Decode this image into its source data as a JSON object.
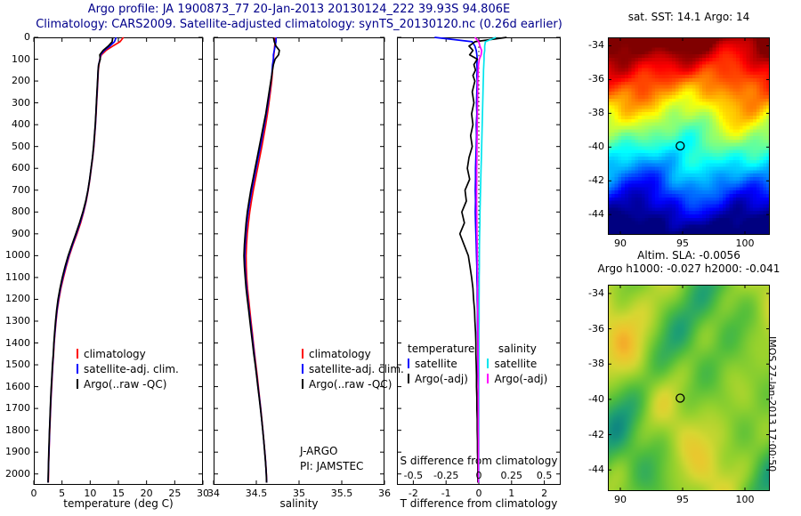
{
  "header": {
    "line1": "Argo profile: JA 1900873_77 20-Jan-2013 20130124_222 39.93S 94.806E",
    "line2": "Climatology: CARS2009. Satellite-adjusted climatology: synTS_20130120.nc (0.26d earlier)"
  },
  "notes": {
    "line1": "J-ARGO",
    "line2": "PI: JAMSTEC"
  },
  "watermark": "IMOS 27-Jan-2013 17:00:50",
  "colors": {
    "title": "#00008b",
    "climatology_red": "#ff0000",
    "satellite_blue": "#0000ff",
    "argo_black": "#000000",
    "salinity_satellite_cyan": "#00e5ee",
    "salinity_argo_magenta": "#ff00ff"
  },
  "profile_depths_m": [
    0,
    20,
    40,
    60,
    80,
    100,
    125,
    150,
    175,
    200,
    250,
    300,
    350,
    400,
    450,
    500,
    550,
    600,
    650,
    700,
    750,
    800,
    850,
    900,
    950,
    1000,
    1050,
    1100,
    1150,
    1200,
    1250,
    1300,
    1350,
    1400,
    1450,
    1500,
    1550,
    1600,
    1650,
    1700,
    1750,
    1800,
    1850,
    1900,
    1950,
    2000,
    2040
  ],
  "chart_data": [
    {
      "id": "temp",
      "type": "line",
      "xlabel": "temperature (deg C)",
      "xlim": [
        0,
        30
      ],
      "xticks": [
        0,
        5,
        10,
        15,
        20,
        25,
        30
      ],
      "xtick_labels": [
        "0",
        "5",
        "10",
        "15",
        "20",
        "25",
        "30"
      ],
      "ylim": [
        0,
        2050
      ],
      "yticks": [
        0,
        100,
        200,
        300,
        400,
        500,
        600,
        700,
        800,
        900,
        1000,
        1100,
        1200,
        1300,
        1400,
        1500,
        1600,
        1700,
        1800,
        1900,
        2000
      ],
      "show_ylabels": true,
      "series": [
        {
          "name": "climatology",
          "color": "#ff0000",
          "values": [
            15.9,
            15.3,
            14.0,
            12.8,
            12.0,
            11.7,
            11.55,
            11.45,
            11.4,
            11.35,
            11.25,
            11.15,
            11.05,
            10.95,
            10.8,
            10.65,
            10.45,
            10.2,
            9.95,
            9.65,
            9.3,
            8.85,
            8.3,
            7.65,
            6.95,
            6.3,
            5.75,
            5.25,
            4.8,
            4.45,
            4.15,
            3.95,
            3.78,
            3.62,
            3.5,
            3.38,
            3.27,
            3.17,
            3.07,
            2.98,
            2.9,
            2.83,
            2.76,
            2.7,
            2.64,
            2.6,
            2.57
          ]
        },
        {
          "name": "satellite-adj. clim.",
          "color": "#0000ff",
          "values": [
            14.6,
            14.3,
            13.5,
            12.5,
            11.85,
            11.75,
            11.5,
            11.42,
            11.37,
            11.32,
            11.22,
            11.12,
            11.02,
            10.92,
            10.77,
            10.62,
            10.42,
            10.17,
            9.92,
            9.62,
            9.25,
            8.78,
            8.2,
            7.55,
            6.85,
            6.2,
            5.65,
            5.15,
            4.72,
            4.37,
            4.1,
            3.9,
            3.74,
            3.58,
            3.47,
            3.34,
            3.23,
            3.13,
            3.03,
            2.95,
            2.87,
            2.8,
            2.74,
            2.68,
            2.62,
            2.58,
            2.55
          ]
        },
        {
          "name": "Argo(..raw -QC)",
          "color": "#000000",
          "values": [
            14.0,
            13.9,
            13.2,
            12.3,
            11.7,
            11.8,
            11.5,
            11.4,
            11.35,
            11.3,
            11.2,
            11.1,
            11.0,
            10.9,
            10.75,
            10.6,
            10.4,
            10.15,
            9.9,
            9.6,
            9.2,
            8.7,
            8.1,
            7.45,
            6.75,
            6.1,
            5.55,
            5.05,
            4.65,
            4.3,
            4.05,
            3.85,
            3.7,
            3.55,
            3.45,
            3.3,
            3.2,
            3.1,
            3.0,
            2.92,
            2.85,
            2.78,
            2.72,
            2.66,
            2.6,
            2.56,
            2.53
          ]
        }
      ]
    },
    {
      "id": "sal",
      "type": "line",
      "xlabel": "salinity",
      "xlim": [
        34,
        36
      ],
      "xticks": [
        34,
        34.5,
        35,
        35.5,
        36
      ],
      "xtick_labels": [
        "34",
        "34.5",
        "35",
        "35.5",
        "36"
      ],
      "ylim": [
        0,
        2050
      ],
      "show_ylabels": false,
      "series": [
        {
          "name": "climatology",
          "color": "#ff0000",
          "values": [
            34.72,
            34.72,
            34.715,
            34.71,
            34.705,
            34.7,
            34.695,
            34.69,
            34.685,
            34.68,
            34.665,
            34.648,
            34.63,
            34.61,
            34.588,
            34.565,
            34.54,
            34.515,
            34.49,
            34.465,
            34.443,
            34.423,
            34.407,
            34.394,
            34.385,
            34.38,
            34.382,
            34.388,
            34.397,
            34.41,
            34.424,
            34.438,
            34.452,
            34.466,
            34.48,
            34.495,
            34.51,
            34.524,
            34.538,
            34.552,
            34.565,
            34.577,
            34.589,
            34.6,
            34.61,
            34.618,
            34.622
          ]
        },
        {
          "name": "satellite-adj. clim.",
          "color": "#0000ff",
          "values": [
            34.73,
            34.73,
            34.72,
            34.71,
            34.7,
            34.7,
            34.69,
            34.685,
            34.68,
            34.672,
            34.655,
            34.637,
            34.617,
            34.595,
            34.572,
            34.548,
            34.522,
            34.497,
            34.472,
            34.447,
            34.425,
            34.405,
            34.39,
            34.378,
            34.37,
            34.365,
            34.368,
            34.376,
            34.387,
            34.4,
            34.415,
            34.43,
            34.445,
            34.46,
            34.475,
            34.49,
            34.505,
            34.52,
            34.535,
            34.55,
            34.563,
            34.576,
            34.588,
            34.599,
            34.609,
            34.617,
            34.621
          ]
        },
        {
          "name": "Argo(..raw -QC)",
          "color": "#000000",
          "values": [
            34.7,
            34.71,
            34.73,
            34.77,
            34.76,
            34.72,
            34.7,
            34.69,
            34.68,
            34.67,
            34.65,
            34.63,
            34.61,
            34.585,
            34.56,
            34.535,
            34.51,
            34.485,
            34.46,
            34.435,
            34.415,
            34.395,
            34.38,
            34.37,
            34.36,
            34.355,
            34.36,
            34.37,
            34.38,
            34.395,
            34.41,
            34.425,
            34.44,
            34.455,
            34.47,
            34.487,
            34.503,
            34.518,
            34.533,
            34.548,
            34.562,
            34.575,
            34.587,
            34.598,
            34.608,
            34.617,
            34.62
          ]
        }
      ]
    },
    {
      "id": "diff",
      "type": "line",
      "xlabel": "T difference from climatology",
      "inner_label": "S difference from climatology",
      "xlim": [
        -2.5,
        2.5
      ],
      "xticks": [
        -2,
        -1,
        0,
        1,
        2
      ],
      "xtick_labels": [
        "-2",
        "-1",
        "0",
        "1",
        "2"
      ],
      "s_tick_labels": [
        "-0.5",
        "-0.25",
        "0",
        "0.25",
        "0.5"
      ],
      "s_scale": 4,
      "ylim": [
        0,
        2050
      ],
      "show_ylabels": false,
      "zero_line": true,
      "legend_headers": [
        "temperature",
        "salinity"
      ],
      "series": [
        {
          "name": "satellite",
          "group": "temperature",
          "color": "#0000ff",
          "values": [
            -1.35,
            -0.2,
            -0.12,
            -0.08,
            -0.06,
            -0.05,
            -0.06,
            -0.05,
            -0.06,
            -0.05,
            -0.06,
            -0.07,
            -0.06,
            -0.08,
            -0.07,
            -0.08,
            -0.09,
            -0.1,
            -0.1,
            -0.11,
            -0.1,
            -0.11,
            -0.1,
            -0.09,
            -0.08,
            -0.07,
            -0.06,
            -0.06,
            -0.05,
            -0.05,
            -0.04,
            -0.04,
            -0.04,
            -0.03,
            -0.03,
            -0.03,
            -0.03,
            -0.02,
            -0.02,
            -0.02,
            -0.02,
            -0.02,
            -0.01,
            -0.01,
            -0.01,
            -0.01,
            -0.01
          ]
        },
        {
          "name": "Argo(-adj)",
          "group": "temperature",
          "color": "#000000",
          "values": [
            0.85,
            -0.12,
            -0.3,
            -0.18,
            -0.28,
            -0.05,
            -0.15,
            -0.1,
            -0.18,
            -0.12,
            -0.2,
            -0.15,
            -0.22,
            -0.18,
            -0.25,
            -0.2,
            -0.3,
            -0.35,
            -0.28,
            -0.42,
            -0.38,
            -0.52,
            -0.44,
            -0.58,
            -0.45,
            -0.32,
            -0.27,
            -0.22,
            -0.18,
            -0.16,
            -0.13,
            -0.12,
            -0.1,
            -0.09,
            -0.09,
            -0.08,
            -0.07,
            -0.07,
            -0.06,
            -0.06,
            -0.05,
            -0.05,
            -0.04,
            -0.04,
            -0.03,
            -0.03,
            -0.03
          ]
        },
        {
          "name": "satellite",
          "group": "salinity",
          "color": "#00e5ee",
          "scale": 4,
          "values": [
            0.13,
            0.05,
            0.045,
            0.045,
            0.04,
            0.04,
            0.038,
            0.036,
            0.035,
            0.034,
            0.032,
            0.03,
            0.028,
            0.026,
            0.024,
            0.022,
            0.02,
            0.017,
            0.015,
            0.013,
            0.011,
            0.009,
            0.008,
            0.006,
            0.005,
            0.004,
            0.004,
            0.003,
            0.003,
            0.002,
            0.002,
            0.002,
            0.001,
            0.001,
            0.001,
            0.001,
            0.001,
            0.0,
            0.0,
            0.0,
            0.0,
            0.0,
            0.0,
            0.0,
            0.0,
            0.0,
            0.0
          ]
        },
        {
          "name": "Argo(-adj)",
          "group": "salinity",
          "color": "#ff00ff",
          "scale": 4,
          "values": [
            -0.03,
            0.0,
            0.008,
            0.022,
            0.018,
            0.004,
            -0.003,
            -0.005,
            -0.007,
            -0.008,
            -0.009,
            -0.01,
            -0.011,
            -0.012,
            -0.013,
            -0.014,
            -0.015,
            -0.016,
            -0.016,
            -0.017,
            -0.017,
            -0.016,
            -0.015,
            -0.014,
            -0.012,
            -0.011,
            -0.01,
            -0.009,
            -0.009,
            -0.008,
            -0.008,
            -0.007,
            -0.007,
            -0.006,
            -0.006,
            -0.006,
            -0.005,
            -0.005,
            -0.005,
            -0.004,
            -0.004,
            -0.004,
            -0.003,
            -0.003,
            -0.003,
            -0.003,
            -0.003
          ]
        }
      ]
    },
    {
      "id": "sst",
      "type": "heatmap",
      "title": "sat. SST: 14.1 Argo: 14",
      "lon_range": [
        89,
        102
      ],
      "lat_range": [
        -33.5,
        -45.2
      ],
      "xticks": [
        90,
        95,
        100
      ],
      "yticks": [
        -34,
        -36,
        -38,
        -40,
        -42,
        -44
      ],
      "marker": {
        "lon": 94.806,
        "lat": -39.93
      },
      "palette": "jet",
      "description": "Satellite SST: warm dark-red/orange water in the north (~-34) grading through yellow and green near -38/-40 to cyan, blue and dark blue cold water south of -43"
    },
    {
      "id": "sla",
      "type": "heatmap",
      "titles": [
        "Altim. SLA: -0.0056",
        "Argo h1000: -0.027 h2000: -0.041"
      ],
      "lon_range": [
        89,
        102
      ],
      "lat_range": [
        -33.5,
        -45.2
      ],
      "xticks": [
        90,
        95,
        100
      ],
      "yticks": [
        -34,
        -36,
        -38,
        -40,
        -42,
        -44
      ],
      "marker": {
        "lon": 94.806,
        "lat": -39.93
      },
      "palette": "green-yellow",
      "description": "Altimetric sea-level anomaly: patchy yellow-green field with darker green and teal blobs"
    }
  ]
}
